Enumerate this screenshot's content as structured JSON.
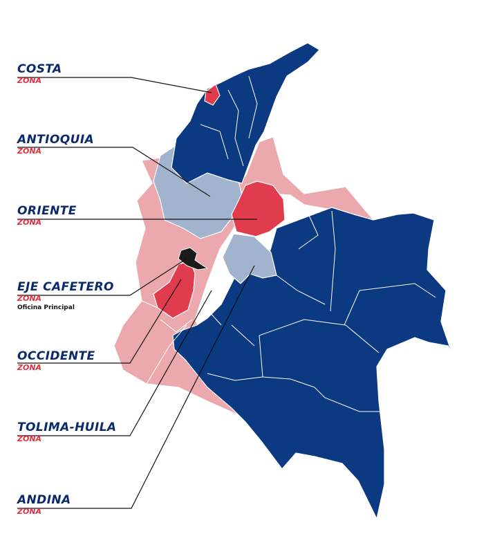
{
  "colors": {
    "dark_blue": "#0b3a82",
    "light_blue": "#a2b3cd",
    "pink": "#eba8ad",
    "red": "#e03c4d",
    "black": "#1a1a1a",
    "border": "#ffffff",
    "leader": "#111111",
    "label_blue": "#0b2a6b",
    "label_red": "#e0303f"
  },
  "zones": [
    {
      "id": "costa",
      "name": "COSTA",
      "sub": "ZONA",
      "color": "red"
    },
    {
      "id": "antioquia",
      "name": "ANTIOQUIA",
      "sub": "ZONA",
      "color": "light_blue"
    },
    {
      "id": "oriente",
      "name": "ORIENTE",
      "sub": "ZONA",
      "color": "red"
    },
    {
      "id": "eje-cafetero",
      "name": "EJE CAFETERO",
      "sub": "ZONA",
      "note": "Oficina Principal",
      "color": "black"
    },
    {
      "id": "occidente",
      "name": "OCCIDENTE",
      "sub": "ZONA",
      "color": "pink"
    },
    {
      "id": "tolima-huila",
      "name": "TOLIMA-HUILA",
      "sub": "ZONA",
      "color": "pink"
    },
    {
      "id": "andina",
      "name": "ANDINA",
      "sub": "ZONA",
      "color": "light_blue"
    }
  ]
}
